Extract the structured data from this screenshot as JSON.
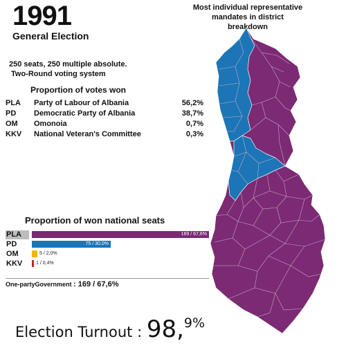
{
  "title": {
    "year": "1991",
    "subtitle": "General Election"
  },
  "info": {
    "line1": "250 seats, 250 multiple absolute.",
    "line2": "Two-Round voting system"
  },
  "votes": {
    "title": "Proportion of votes won",
    "rows": [
      {
        "abbr": "PLA",
        "name": "Party of Labour of Albania",
        "pct": "56,2%"
      },
      {
        "abbr": "PD",
        "name": "Democratic Party of Albania",
        "pct": "38,7%"
      },
      {
        "abbr": "OM",
        "name": "Omonoia",
        "pct": "0,7%"
      },
      {
        "abbr": "KKV",
        "name": "National Veteran's Committee",
        "pct": "0,3%"
      }
    ]
  },
  "map": {
    "title_line1": "Most individual representative",
    "title_line2": "mandates in district breakdown",
    "colors": {
      "PLA": "#7b2a73",
      "PD": "#1c75b6"
    }
  },
  "seats": {
    "title": "Proportion of won national seats",
    "rows": [
      {
        "abbr": "PLA",
        "label": "169 / 67,6%",
        "seats": 169,
        "share": 0.676,
        "color": "#7b2a73"
      },
      {
        "abbr": "PD",
        "label": "75 / 30,0%",
        "seats": 75,
        "share": 0.3,
        "color": "#1c75b6"
      },
      {
        "abbr": "OM",
        "label": "5 / 2,0%",
        "seats": 5,
        "share": 0.02,
        "color": "#f2b705"
      },
      {
        "abbr": "KKV",
        "label": "1 / 0,4%",
        "seats": 1,
        "share": 0.004,
        "color": "#c0282d"
      }
    ],
    "government_label": "One-partyGovernment",
    "government_value": ": 169 / 67,6%"
  },
  "turnout": {
    "label": "Election Turnout",
    "sep": ":",
    "integer": "98,",
    "decimal": "9%"
  }
}
